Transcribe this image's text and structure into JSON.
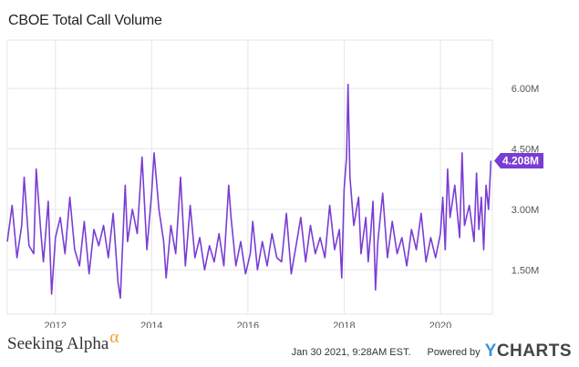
{
  "title": "CBOE Total Call Volume",
  "footer": {
    "brand": "Seeking Alpha",
    "brand_icon": "alpha-icon",
    "timestamp": "Jan 30 2021, 9:28AM EST.",
    "powered_by": "Powered by",
    "logo_y": "Y",
    "logo_rest": "CHARTS"
  },
  "colors": {
    "line": "#7a3dd4",
    "grid": "#e6e6e6",
    "axis_text": "#555555",
    "badge_bg": "#7a3dd4",
    "badge_text": "#ffffff"
  },
  "chart_data": {
    "type": "line",
    "title": "CBOE Total Call Volume",
    "xlabel": "",
    "ylabel": "",
    "xlim": [
      2011.0,
      2021.08
    ],
    "ylim": [
      0.4,
      7.2
    ],
    "grid": true,
    "y_ticks": [
      {
        "value": 1.5,
        "label": "1.50M"
      },
      {
        "value": 3.0,
        "label": "3.00M"
      },
      {
        "value": 4.5,
        "label": "4.50M"
      },
      {
        "value": 6.0,
        "label": "6.00M"
      }
    ],
    "x_ticks": [
      {
        "value": 2012,
        "label": "2012"
      },
      {
        "value": 2014,
        "label": "2014"
      },
      {
        "value": 2016,
        "label": "2016"
      },
      {
        "value": 2018,
        "label": "2018"
      },
      {
        "value": 2020,
        "label": "2020"
      }
    ],
    "last_value": {
      "value": 4.208,
      "label": "4.208M"
    },
    "series": [
      {
        "values": [
          {
            "x": 2011.0,
            "y": 2.2
          },
          {
            "x": 2011.1,
            "y": 3.1
          },
          {
            "x": 2011.2,
            "y": 1.8
          },
          {
            "x": 2011.3,
            "y": 2.6
          },
          {
            "x": 2011.35,
            "y": 3.8
          },
          {
            "x": 2011.45,
            "y": 2.1
          },
          {
            "x": 2011.55,
            "y": 1.9
          },
          {
            "x": 2011.6,
            "y": 4.0
          },
          {
            "x": 2011.7,
            "y": 2.4
          },
          {
            "x": 2011.75,
            "y": 1.7
          },
          {
            "x": 2011.85,
            "y": 3.2
          },
          {
            "x": 2011.92,
            "y": 0.9
          },
          {
            "x": 2012.0,
            "y": 2.3
          },
          {
            "x": 2012.1,
            "y": 2.8
          },
          {
            "x": 2012.2,
            "y": 1.9
          },
          {
            "x": 2012.3,
            "y": 3.3
          },
          {
            "x": 2012.4,
            "y": 2.0
          },
          {
            "x": 2012.5,
            "y": 1.6
          },
          {
            "x": 2012.6,
            "y": 2.7
          },
          {
            "x": 2012.7,
            "y": 1.4
          },
          {
            "x": 2012.8,
            "y": 2.5
          },
          {
            "x": 2012.9,
            "y": 2.1
          },
          {
            "x": 2013.0,
            "y": 2.6
          },
          {
            "x": 2013.1,
            "y": 1.8
          },
          {
            "x": 2013.2,
            "y": 2.9
          },
          {
            "x": 2013.3,
            "y": 1.2
          },
          {
            "x": 2013.35,
            "y": 0.8
          },
          {
            "x": 2013.45,
            "y": 3.6
          },
          {
            "x": 2013.5,
            "y": 2.2
          },
          {
            "x": 2013.6,
            "y": 3.0
          },
          {
            "x": 2013.7,
            "y": 2.4
          },
          {
            "x": 2013.8,
            "y": 4.3
          },
          {
            "x": 2013.9,
            "y": 2.0
          },
          {
            "x": 2014.0,
            "y": 3.4
          },
          {
            "x": 2014.05,
            "y": 4.4
          },
          {
            "x": 2014.15,
            "y": 3.0
          },
          {
            "x": 2014.25,
            "y": 2.2
          },
          {
            "x": 2014.3,
            "y": 1.3
          },
          {
            "x": 2014.4,
            "y": 2.6
          },
          {
            "x": 2014.5,
            "y": 1.9
          },
          {
            "x": 2014.6,
            "y": 3.8
          },
          {
            "x": 2014.7,
            "y": 1.6
          },
          {
            "x": 2014.8,
            "y": 3.1
          },
          {
            "x": 2014.9,
            "y": 1.8
          },
          {
            "x": 2015.0,
            "y": 2.3
          },
          {
            "x": 2015.1,
            "y": 1.5
          },
          {
            "x": 2015.2,
            "y": 2.1
          },
          {
            "x": 2015.3,
            "y": 1.7
          },
          {
            "x": 2015.4,
            "y": 2.4
          },
          {
            "x": 2015.5,
            "y": 1.6
          },
          {
            "x": 2015.6,
            "y": 3.6
          },
          {
            "x": 2015.65,
            "y": 2.8
          },
          {
            "x": 2015.75,
            "y": 1.6
          },
          {
            "x": 2015.85,
            "y": 2.2
          },
          {
            "x": 2015.95,
            "y": 1.4
          },
          {
            "x": 2016.05,
            "y": 1.9
          },
          {
            "x": 2016.1,
            "y": 2.7
          },
          {
            "x": 2016.2,
            "y": 1.5
          },
          {
            "x": 2016.3,
            "y": 2.2
          },
          {
            "x": 2016.4,
            "y": 1.6
          },
          {
            "x": 2016.5,
            "y": 2.4
          },
          {
            "x": 2016.6,
            "y": 1.8
          },
          {
            "x": 2016.7,
            "y": 1.7
          },
          {
            "x": 2016.8,
            "y": 2.9
          },
          {
            "x": 2016.9,
            "y": 1.4
          },
          {
            "x": 2017.0,
            "y": 2.1
          },
          {
            "x": 2017.1,
            "y": 2.8
          },
          {
            "x": 2017.2,
            "y": 1.7
          },
          {
            "x": 2017.3,
            "y": 2.6
          },
          {
            "x": 2017.4,
            "y": 1.9
          },
          {
            "x": 2017.5,
            "y": 2.3
          },
          {
            "x": 2017.6,
            "y": 1.8
          },
          {
            "x": 2017.7,
            "y": 3.1
          },
          {
            "x": 2017.8,
            "y": 2.0
          },
          {
            "x": 2017.9,
            "y": 2.5
          },
          {
            "x": 2017.95,
            "y": 1.3
          },
          {
            "x": 2018.0,
            "y": 3.5
          },
          {
            "x": 2018.05,
            "y": 4.3
          },
          {
            "x": 2018.08,
            "y": 6.1
          },
          {
            "x": 2018.12,
            "y": 3.8
          },
          {
            "x": 2018.2,
            "y": 2.6
          },
          {
            "x": 2018.3,
            "y": 3.3
          },
          {
            "x": 2018.35,
            "y": 1.9
          },
          {
            "x": 2018.45,
            "y": 2.8
          },
          {
            "x": 2018.5,
            "y": 1.7
          },
          {
            "x": 2018.55,
            "y": 2.4
          },
          {
            "x": 2018.6,
            "y": 3.2
          },
          {
            "x": 2018.65,
            "y": 1.0
          },
          {
            "x": 2018.7,
            "y": 2.2
          },
          {
            "x": 2018.8,
            "y": 3.4
          },
          {
            "x": 2018.9,
            "y": 1.8
          },
          {
            "x": 2019.0,
            "y": 2.7
          },
          {
            "x": 2019.1,
            "y": 1.9
          },
          {
            "x": 2019.2,
            "y": 2.3
          },
          {
            "x": 2019.3,
            "y": 1.6
          },
          {
            "x": 2019.4,
            "y": 2.5
          },
          {
            "x": 2019.5,
            "y": 2.0
          },
          {
            "x": 2019.6,
            "y": 2.9
          },
          {
            "x": 2019.7,
            "y": 1.7
          },
          {
            "x": 2019.8,
            "y": 2.3
          },
          {
            "x": 2019.9,
            "y": 1.8
          },
          {
            "x": 2020.0,
            "y": 2.4
          },
          {
            "x": 2020.05,
            "y": 3.3
          },
          {
            "x": 2020.1,
            "y": 2.0
          },
          {
            "x": 2020.15,
            "y": 4.0
          },
          {
            "x": 2020.2,
            "y": 2.8
          },
          {
            "x": 2020.3,
            "y": 3.6
          },
          {
            "x": 2020.4,
            "y": 2.3
          },
          {
            "x": 2020.45,
            "y": 4.4
          },
          {
            "x": 2020.5,
            "y": 2.6
          },
          {
            "x": 2020.6,
            "y": 3.1
          },
          {
            "x": 2020.7,
            "y": 2.2
          },
          {
            "x": 2020.75,
            "y": 3.9
          },
          {
            "x": 2020.8,
            "y": 2.5
          },
          {
            "x": 2020.85,
            "y": 3.3
          },
          {
            "x": 2020.9,
            "y": 2.0
          },
          {
            "x": 2020.95,
            "y": 3.6
          },
          {
            "x": 2021.0,
            "y": 3.0
          },
          {
            "x": 2021.05,
            "y": 4.208
          }
        ]
      }
    ]
  }
}
